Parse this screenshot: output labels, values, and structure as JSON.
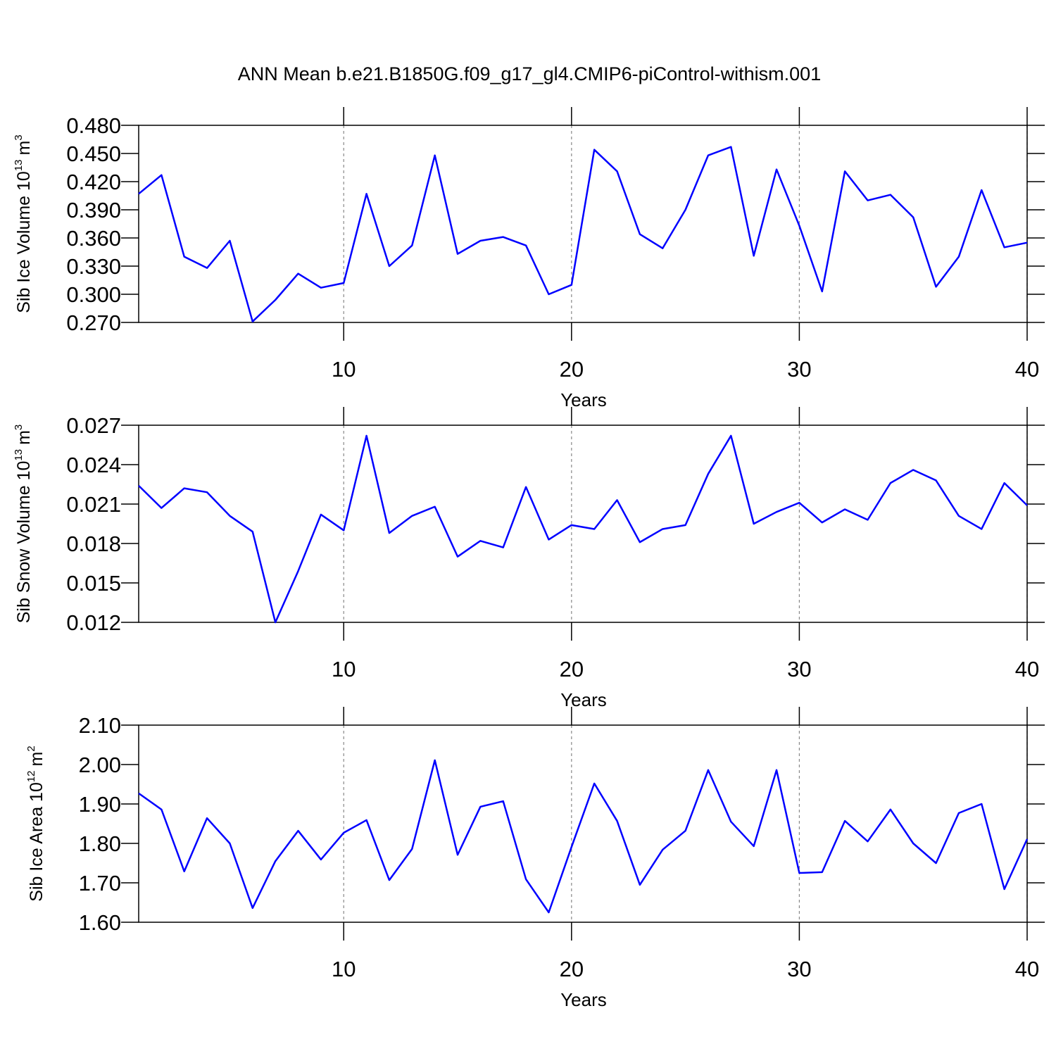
{
  "title": "ANN Mean b.e21.B1850G.f09_g17_gl4.CMIP6-piControl-withism.001",
  "chart_data": [
    {
      "type": "line",
      "ylabel": [
        "Sib Ice Volume 10",
        "13",
        "m",
        "3"
      ],
      "xlabel": "Years",
      "x": [
        1,
        2,
        3,
        4,
        5,
        6,
        7,
        8,
        9,
        10,
        11,
        12,
        13,
        14,
        15,
        16,
        17,
        18,
        19,
        20,
        21,
        22,
        23,
        24,
        25,
        26,
        27,
        28,
        29,
        30,
        31,
        32,
        33,
        34,
        35,
        36,
        37,
        38,
        39,
        40
      ],
      "series": [
        {
          "color": "#0000ff",
          "values": [
            0.407,
            0.427,
            0.34,
            0.328,
            0.357,
            0.271,
            0.294,
            0.322,
            0.307,
            0.312,
            0.407,
            0.33,
            0.352,
            0.448,
            0.343,
            0.357,
            0.361,
            0.352,
            0.3,
            0.31,
            0.454,
            0.431,
            0.364,
            0.349,
            0.39,
            0.448,
            0.457,
            0.341,
            0.433,
            0.373,
            0.303,
            0.431,
            0.4,
            0.406,
            0.382,
            0.308,
            0.34,
            0.411,
            0.35,
            0.355
          ]
        }
      ],
      "xlim": [
        1,
        40
      ],
      "xticks": [
        10,
        20,
        30,
        40
      ],
      "xgrid": true,
      "ylim": [
        0.27,
        0.48
      ],
      "yticks": [
        {
          "value": 0.27,
          "label": "0.270"
        },
        {
          "value": 0.3,
          "label": "0.300"
        },
        {
          "value": 0.33,
          "label": "0.330"
        },
        {
          "value": 0.36,
          "label": "0.360"
        },
        {
          "value": 0.39,
          "label": "0.390"
        },
        {
          "value": 0.42,
          "label": "0.420"
        },
        {
          "value": 0.45,
          "label": "0.450"
        },
        {
          "value": 0.48,
          "label": "0.480"
        }
      ]
    },
    {
      "type": "line",
      "ylabel": [
        "Sib Snow Volume 10",
        "13",
        "m",
        "3"
      ],
      "xlabel": "Years",
      "x": [
        1,
        2,
        3,
        4,
        5,
        6,
        7,
        8,
        9,
        10,
        11,
        12,
        13,
        14,
        15,
        16,
        17,
        18,
        19,
        20,
        21,
        22,
        23,
        24,
        25,
        26,
        27,
        28,
        29,
        30,
        31,
        32,
        33,
        34,
        35,
        36,
        37,
        38,
        39,
        40
      ],
      "series": [
        {
          "color": "#0000ff",
          "values": [
            0.0224,
            0.0207,
            0.0222,
            0.0219,
            0.0201,
            0.0189,
            0.012,
            0.0159,
            0.0202,
            0.019,
            0.0262,
            0.0188,
            0.0201,
            0.0208,
            0.017,
            0.0182,
            0.0177,
            0.0223,
            0.0183,
            0.0194,
            0.0191,
            0.0213,
            0.0181,
            0.0191,
            0.0194,
            0.0233,
            0.0262,
            0.0195,
            0.0204,
            0.0211,
            0.0196,
            0.0206,
            0.0198,
            0.0226,
            0.0236,
            0.0228,
            0.0201,
            0.0191,
            0.0226,
            0.0209
          ]
        }
      ],
      "xlim": [
        1,
        40
      ],
      "xticks": [
        10,
        20,
        30,
        40
      ],
      "xgrid": true,
      "ylim": [
        0.012,
        0.027
      ],
      "yticks": [
        0.012,
        0.015,
        0.018,
        0.021,
        0.024,
        0.027
      ]
    },
    {
      "type": "line",
      "ylabel": [
        "Sib Ice Area 10",
        "12",
        "m",
        "2"
      ],
      "xlabel": "Years",
      "x": [
        1,
        2,
        3,
        4,
        5,
        6,
        7,
        8,
        9,
        10,
        11,
        12,
        13,
        14,
        15,
        16,
        17,
        18,
        19,
        20,
        21,
        22,
        23,
        24,
        25,
        26,
        27,
        28,
        29,
        30,
        31,
        32,
        33,
        34,
        35,
        36,
        37,
        38,
        39,
        40
      ],
      "series": [
        {
          "color": "#0000ff",
          "values": [
            1.927,
            1.886,
            1.729,
            1.864,
            1.8,
            1.636,
            1.755,
            1.832,
            1.759,
            1.827,
            1.859,
            1.707,
            1.786,
            2.011,
            1.771,
            1.893,
            1.907,
            1.709,
            1.625,
            1.791,
            1.952,
            1.857,
            1.695,
            1.784,
            1.832,
            1.986,
            1.855,
            1.793,
            1.986,
            1.725,
            1.727,
            1.857,
            1.805,
            1.886,
            1.8,
            1.75,
            1.877,
            1.9,
            1.684,
            1.811
          ]
        }
      ],
      "xlim": [
        1,
        40
      ],
      "xticks": [
        10,
        20,
        30,
        40
      ],
      "xgrid": true,
      "ylim": [
        1.6,
        2.1
      ],
      "yticks": [
        {
          "value": 1.6,
          "label": "1.60"
        },
        {
          "value": 1.7,
          "label": "1.70"
        },
        {
          "value": 1.8,
          "label": "1.80"
        },
        {
          "value": 1.9,
          "label": "1.90"
        },
        {
          "value": 2.0,
          "label": "2.00"
        },
        {
          "value": 2.1,
          "label": "2.10"
        }
      ]
    }
  ]
}
